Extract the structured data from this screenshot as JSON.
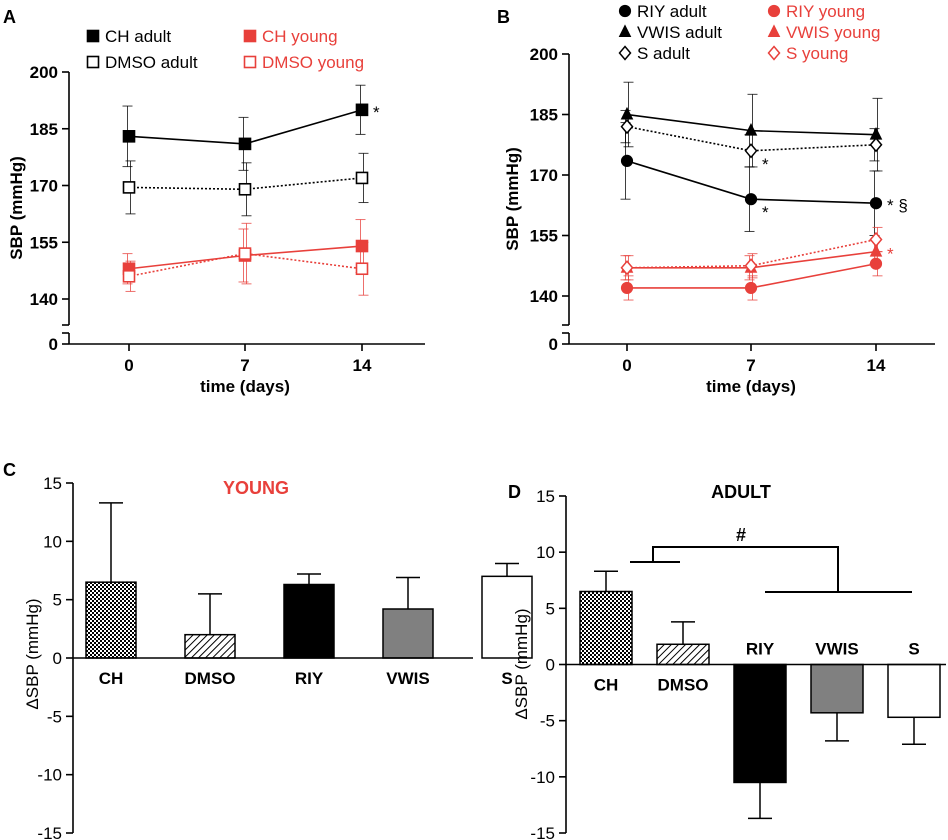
{
  "colors": {
    "adult": "#000000",
    "young": "#e8403b",
    "title_young": "#e8403b"
  },
  "chart_data": [
    {
      "panel": "A",
      "type": "line",
      "ylabel": "SBP (mmHg)",
      "xlabel": "time (days)",
      "x": [
        0,
        7,
        14
      ],
      "xticks": [
        "0",
        "7",
        "14"
      ],
      "ylim": [
        140,
        200
      ],
      "yticks": [
        "140",
        "155",
        "170",
        "185",
        "200"
      ],
      "ybreak_label": "0",
      "series": [
        {
          "name": "CH adult",
          "group": "adult",
          "marker": "square-filled",
          "dash": false,
          "values": [
            183,
            181,
            190
          ],
          "err": [
            8,
            7,
            6.5
          ]
        },
        {
          "name": "DMSO adult",
          "group": "adult",
          "marker": "square-open",
          "dash": true,
          "values": [
            169.5,
            169,
            172
          ],
          "err": [
            7,
            7,
            6.5
          ]
        },
        {
          "name": "CH young",
          "group": "young",
          "marker": "square-filled",
          "dash": false,
          "values": [
            148,
            151.5,
            154
          ],
          "err": [
            4,
            7,
            7
          ]
        },
        {
          "name": "DMSO young",
          "group": "young",
          "marker": "square-open",
          "dash": true,
          "values": [
            146,
            152,
            148
          ],
          "err": [
            4,
            8,
            7
          ]
        }
      ],
      "annotations": [
        {
          "text": "*",
          "series": 0,
          "index": 2
        }
      ]
    },
    {
      "panel": "B",
      "type": "line",
      "ylabel": "SBP (mmHg)",
      "xlabel": "time (days)",
      "x": [
        0,
        7,
        14
      ],
      "xticks": [
        "0",
        "7",
        "14"
      ],
      "ylim": [
        140,
        200
      ],
      "yticks": [
        "140",
        "155",
        "170",
        "185",
        "200"
      ],
      "ybreak_label": "0",
      "series": [
        {
          "name": "RIY adult",
          "group": "adult",
          "marker": "circle-filled",
          "dash": false,
          "values": [
            173.5,
            164,
            163
          ],
          "err": [
            9.5,
            8,
            8
          ]
        },
        {
          "name": "VWIS adult",
          "group": "adult",
          "marker": "triangle-filled",
          "dash": false,
          "values": [
            185,
            181,
            180
          ],
          "err": [
            8,
            9,
            9
          ]
        },
        {
          "name": "S adult",
          "group": "adult",
          "marker": "diamond-open",
          "dash": true,
          "values": [
            182,
            176,
            177.5
          ],
          "err": [
            4,
            4,
            4
          ]
        },
        {
          "name": "RIY young",
          "group": "young",
          "marker": "circle-filled",
          "dash": false,
          "values": [
            142,
            142,
            148
          ],
          "err": [
            3,
            3,
            3
          ]
        },
        {
          "name": "VWIS young",
          "group": "young",
          "marker": "triangle-filled",
          "dash": false,
          "values": [
            147,
            147,
            151
          ],
          "err": [
            3,
            3,
            3
          ]
        },
        {
          "name": "S young",
          "group": "young",
          "marker": "diamond-open",
          "dash": true,
          "values": [
            147,
            147.5,
            154
          ],
          "err": [
            3,
            3,
            3
          ]
        }
      ],
      "annotations": [
        {
          "text": "*",
          "series": 2,
          "index": 1
        },
        {
          "text": "*",
          "series": 0,
          "index": 1
        },
        {
          "text": "* §",
          "series": 0,
          "index": 2
        },
        {
          "text": "*",
          "series": 4,
          "index": 2
        }
      ]
    },
    {
      "panel": "C",
      "type": "bar",
      "title": "YOUNG",
      "ylabel": "ΔSBP (mmHg)",
      "ylim": [
        -15,
        15
      ],
      "yticks": [
        "-15",
        "-10",
        "-5",
        "0",
        "5",
        "10",
        "15"
      ],
      "categories": [
        "CH",
        "DMSO",
        "RIY",
        "VWIS",
        "S"
      ],
      "fills": [
        "crosshatch",
        "diagonal",
        "black",
        "gray",
        "white"
      ],
      "values": [
        6.5,
        2,
        6.3,
        4.2,
        7
      ],
      "err": [
        6.8,
        3.5,
        0.9,
        2.7,
        1.1
      ]
    },
    {
      "panel": "D",
      "type": "bar",
      "title": "ADULT",
      "ylabel": "ΔSBP (mmHg)",
      "ylim": [
        -15,
        15
      ],
      "yticks": [
        "-15",
        "-10",
        "-5",
        "0",
        "5",
        "10",
        "15"
      ],
      "categories": [
        "CH",
        "DMSO",
        "RIY",
        "VWIS",
        "S"
      ],
      "fills": [
        "crosshatch",
        "diagonal",
        "black",
        "gray",
        "white"
      ],
      "values": [
        6.5,
        1.8,
        -10.5,
        -4.3,
        -4.7
      ],
      "err": [
        1.8,
        2,
        3.2,
        2.5,
        2.4
      ],
      "significance": "#"
    }
  ]
}
